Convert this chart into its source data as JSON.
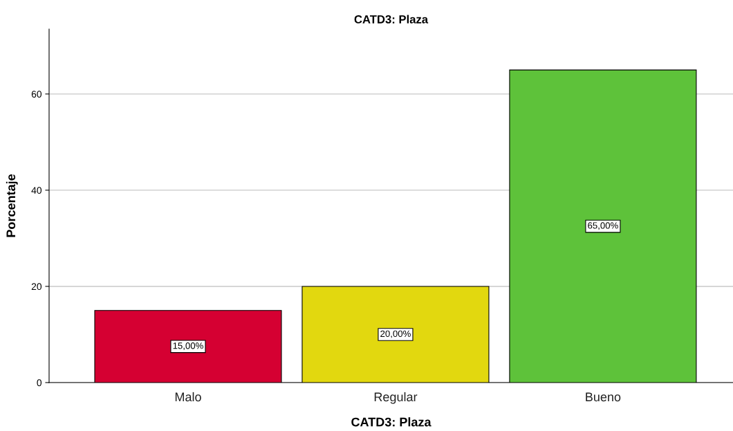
{
  "chart_data": {
    "type": "bar",
    "title": "CATD3: Plaza",
    "xlabel": "CATD3: Plaza",
    "ylabel": "Porcentaje",
    "categories": [
      "Malo",
      "Regular",
      "Bueno"
    ],
    "values": [
      15,
      20,
      65
    ],
    "colors": [
      "#d50032",
      "#e2d80f",
      "#5ec23a"
    ],
    "value_labels": [
      "15,00%",
      "20,00%",
      "65,00%"
    ],
    "ylim": [
      0,
      73.5
    ],
    "yticks": [
      0,
      20,
      40,
      60
    ],
    "grid": "y",
    "legend": false
  }
}
